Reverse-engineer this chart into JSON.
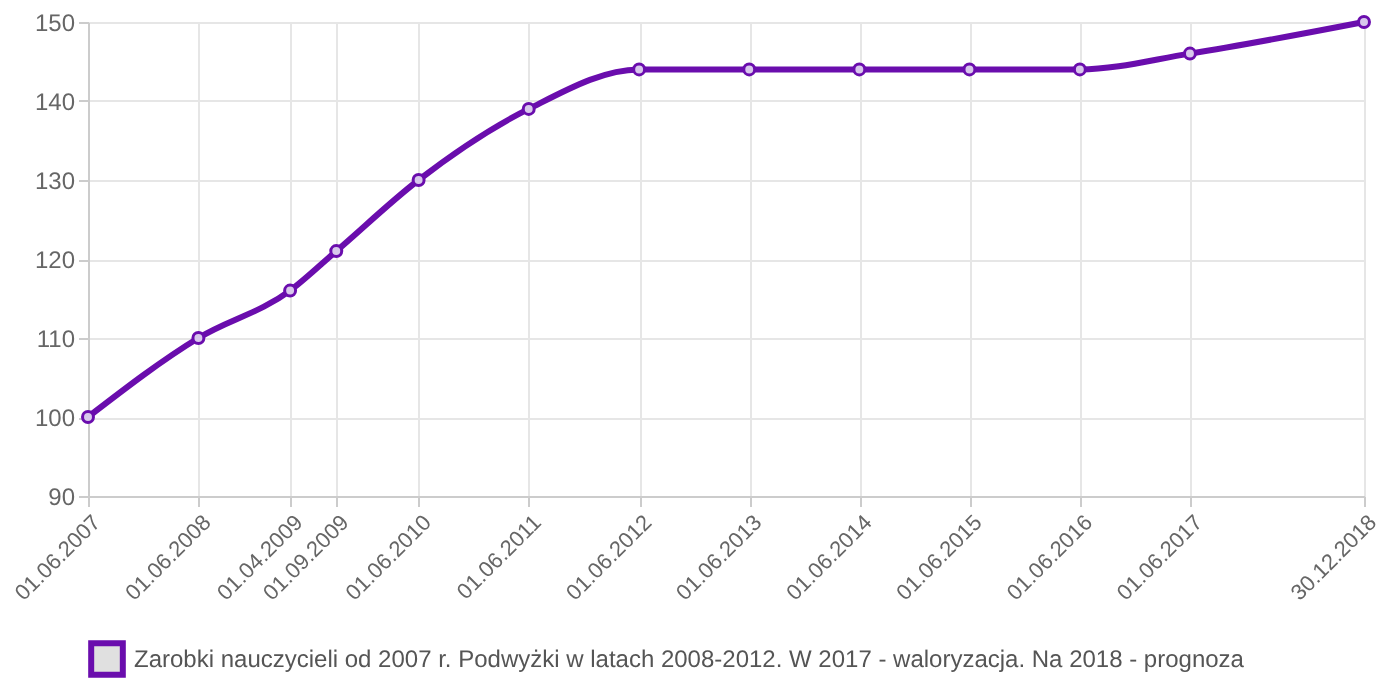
{
  "chart_data": {
    "type": "line",
    "x": [
      "2007-06-01",
      "2008-06-01",
      "2009-04-01",
      "2009-09-01",
      "2010-06-01",
      "2011-06-01",
      "2012-06-01",
      "2013-06-01",
      "2014-06-01",
      "2015-06-01",
      "2016-06-01",
      "2017-06-01",
      "2018-12-30"
    ],
    "series": [
      {
        "name": "Zarobki nauczycieli od 2007 r. Podwyżki w latach 2008-2012. W 2017 - waloryzacja. Na 2018 - prognoza",
        "color": "#6a0dad",
        "values": [
          100,
          110,
          116,
          121,
          130,
          139,
          144,
          144,
          144,
          144,
          144,
          146,
          150
        ]
      }
    ],
    "xlim": [
      "2007-06-01",
      "2018-12-30"
    ],
    "xticks": [
      {
        "value": "2007-06-01",
        "label": "01.06.2007"
      },
      {
        "value": "2008-06-01",
        "label": "01.06.2008"
      },
      {
        "value": "2009-04-01",
        "label": "01.04.2009"
      },
      {
        "value": "2009-09-01",
        "label": "01.09.2009"
      },
      {
        "value": "2010-06-01",
        "label": "01.06.2010"
      },
      {
        "value": "2011-06-01",
        "label": "01.06.2011"
      },
      {
        "value": "2012-06-01",
        "label": "01.06.2012"
      },
      {
        "value": "2013-06-01",
        "label": "01.06.2013"
      },
      {
        "value": "2014-06-01",
        "label": "01.06.2014"
      },
      {
        "value": "2015-06-01",
        "label": "01.06.2015"
      },
      {
        "value": "2016-06-01",
        "label": "01.06.2016"
      },
      {
        "value": "2017-06-01",
        "label": "01.06.2017"
      },
      {
        "value": "2018-12-30",
        "label": "30.12.2018"
      }
    ],
    "ylim": [
      90,
      150
    ],
    "yticks": [
      90,
      100,
      110,
      120,
      130,
      140,
      150
    ],
    "grid": true,
    "legend": "bottom",
    "marker": "circle",
    "line_style": "solid"
  }
}
